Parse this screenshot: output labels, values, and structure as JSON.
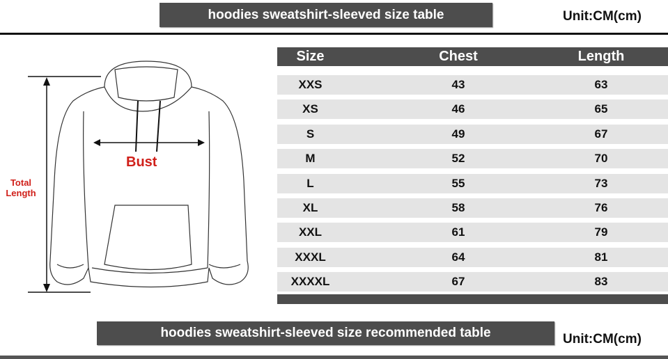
{
  "top_banner": "hoodies sweatshirt-sleeved size  table",
  "unit_label": "Unit:CM(cm)",
  "bottom_banner": "hoodies sweatshirt-sleeved size recommended table",
  "diagram": {
    "bust_label": "Bust",
    "total_length_label_1": "Total",
    "total_length_label_2": "Length"
  },
  "table": {
    "headers": [
      "Size",
      "Chest",
      "Length"
    ],
    "rows": [
      [
        "XXS",
        "43",
        "63"
      ],
      [
        "XS",
        "46",
        "65"
      ],
      [
        "S",
        "49",
        "67"
      ],
      [
        "M",
        "52",
        "70"
      ],
      [
        "L",
        "55",
        "73"
      ],
      [
        "XL",
        "58",
        "76"
      ],
      [
        "XXL",
        "61",
        "79"
      ],
      [
        "XXXL",
        "64",
        "81"
      ],
      [
        "XXXXL",
        "67",
        "83"
      ]
    ]
  },
  "colors": {
    "banner": "#4d4d4d",
    "accent_red": "#d0201a",
    "row": "#e4e4e4"
  }
}
